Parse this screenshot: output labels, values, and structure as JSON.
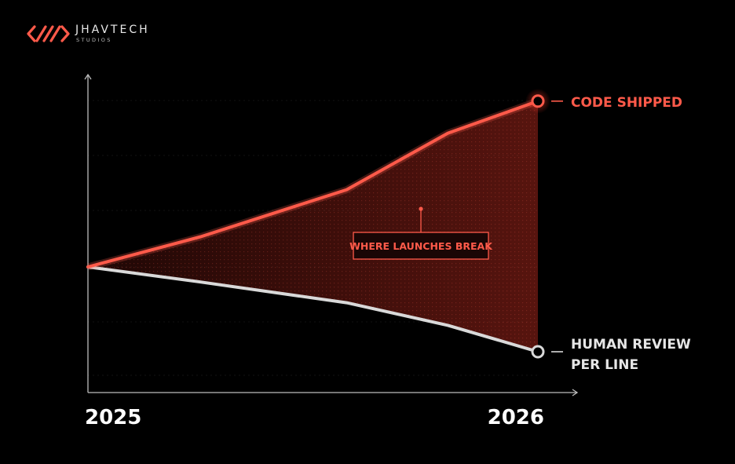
{
  "brand": {
    "name": "JHAVTECH",
    "tagline": "STUDIOS",
    "accent": "#ff5a4a"
  },
  "chart_data": {
    "type": "line",
    "title": "",
    "xlabel": "",
    "ylabel": "",
    "x": [
      2025,
      2025.25,
      2025.575,
      2025.8,
      2026
    ],
    "x_tick_labels": [
      "2025",
      "2026"
    ],
    "axes": {
      "x_arrow": true,
      "y_arrow": true,
      "y_tick_labels": false
    },
    "grid": true,
    "series": [
      {
        "name": "CODE SHIPPED",
        "color": "#ff5a4a",
        "values": [
          0,
          0.16,
          0.41,
          0.71,
          0.88
        ]
      },
      {
        "name": "HUMAN REVIEW PER LINE",
        "name_lines": [
          "HUMAN REVIEW",
          "PER LINE"
        ],
        "color": "#d9d9d9",
        "values": [
          0,
          -0.08,
          -0.19,
          -0.31,
          -0.45
        ]
      }
    ],
    "shaded_region": {
      "between": [
        "CODE SHIPPED",
        "HUMAN REVIEW PER LINE"
      ],
      "color": "#ff3b2b"
    },
    "annotations": [
      {
        "text": "WHERE LAUNCHES BREAK",
        "x": 2025.74,
        "y": 0.14,
        "color": "#ff5a4a"
      }
    ]
  }
}
